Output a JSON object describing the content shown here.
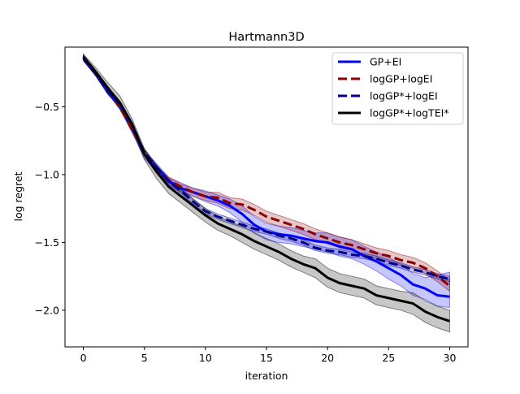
{
  "chart_data": {
    "type": "line",
    "title": "Hartmann3D",
    "xlabel": "iteration",
    "ylabel": "log regret",
    "xlim": [
      -1.5,
      31.5
    ],
    "ylim": [
      -2.27,
      -0.06
    ],
    "xticks": [
      0,
      5,
      10,
      15,
      20,
      25,
      30
    ],
    "xtick_labels": [
      "0",
      "5",
      "10",
      "15",
      "20",
      "25",
      "30"
    ],
    "yticks": [
      -0.5,
      -1.0,
      -1.5,
      -2.0
    ],
    "ytick_labels": [
      "−0.5",
      "−1.0",
      "−1.5",
      "−2.0"
    ],
    "grid": false,
    "legend_position": "upper right",
    "x": [
      0,
      1,
      2,
      3,
      4,
      5,
      6,
      7,
      8,
      9,
      10,
      11,
      12,
      13,
      14,
      15,
      16,
      17,
      18,
      19,
      20,
      21,
      22,
      23,
      24,
      25,
      26,
      27,
      28,
      29,
      30
    ],
    "series": [
      {
        "name": "GP+EI",
        "color": "#0000ff",
        "linestyle": "solid",
        "values": [
          -0.14,
          -0.25,
          -0.38,
          -0.49,
          -0.66,
          -0.85,
          -0.95,
          -1.05,
          -1.1,
          -1.13,
          -1.16,
          -1.19,
          -1.23,
          -1.29,
          -1.37,
          -1.42,
          -1.44,
          -1.45,
          -1.47,
          -1.49,
          -1.5,
          -1.53,
          -1.55,
          -1.6,
          -1.64,
          -1.69,
          -1.74,
          -1.81,
          -1.84,
          -1.89,
          -1.9
        ],
        "lower": [
          -0.16,
          -0.27,
          -0.4,
          -0.51,
          -0.69,
          -0.88,
          -0.98,
          -1.08,
          -1.13,
          -1.16,
          -1.2,
          -1.23,
          -1.28,
          -1.35,
          -1.43,
          -1.48,
          -1.5,
          -1.51,
          -1.53,
          -1.55,
          -1.57,
          -1.6,
          -1.62,
          -1.66,
          -1.71,
          -1.77,
          -1.82,
          -1.89,
          -1.92,
          -1.97,
          -1.98
        ],
        "upper": [
          -0.12,
          -0.23,
          -0.36,
          -0.47,
          -0.63,
          -0.82,
          -0.92,
          -1.02,
          -1.07,
          -1.1,
          -1.12,
          -1.15,
          -1.18,
          -1.23,
          -1.31,
          -1.36,
          -1.38,
          -1.39,
          -1.41,
          -1.43,
          -1.43,
          -1.46,
          -1.48,
          -1.53,
          -1.57,
          -1.61,
          -1.66,
          -1.73,
          -1.76,
          -1.74,
          -1.72
        ]
      },
      {
        "name": "logGP+logEI",
        "color": "#8b0000",
        "linestyle": "dashed",
        "values": [
          -0.14,
          -0.25,
          -0.37,
          -0.5,
          -0.67,
          -0.83,
          -0.96,
          -1.04,
          -1.09,
          -1.13,
          -1.16,
          -1.17,
          -1.21,
          -1.22,
          -1.26,
          -1.31,
          -1.34,
          -1.37,
          -1.4,
          -1.44,
          -1.47,
          -1.5,
          -1.52,
          -1.55,
          -1.58,
          -1.6,
          -1.63,
          -1.65,
          -1.69,
          -1.75,
          -1.82
        ],
        "lower": [
          -0.16,
          -0.27,
          -0.39,
          -0.52,
          -0.69,
          -0.85,
          -0.98,
          -1.06,
          -1.12,
          -1.16,
          -1.19,
          -1.21,
          -1.25,
          -1.26,
          -1.3,
          -1.35,
          -1.38,
          -1.41,
          -1.44,
          -1.48,
          -1.51,
          -1.54,
          -1.56,
          -1.59,
          -1.62,
          -1.64,
          -1.67,
          -1.69,
          -1.73,
          -1.79,
          -1.86
        ],
        "upper": [
          -0.12,
          -0.23,
          -0.35,
          -0.48,
          -0.65,
          -0.81,
          -0.94,
          -1.02,
          -1.06,
          -1.1,
          -1.13,
          -1.13,
          -1.17,
          -1.18,
          -1.22,
          -1.27,
          -1.3,
          -1.33,
          -1.36,
          -1.4,
          -1.43,
          -1.46,
          -1.48,
          -1.51,
          -1.54,
          -1.56,
          -1.59,
          -1.61,
          -1.65,
          -1.71,
          -1.78
        ]
      },
      {
        "name": "logGP*+logEI",
        "color": "#00008b",
        "linestyle": "dashed",
        "values": [
          -0.14,
          -0.25,
          -0.39,
          -0.48,
          -0.63,
          -0.84,
          -0.95,
          -1.05,
          -1.12,
          -1.2,
          -1.27,
          -1.31,
          -1.34,
          -1.37,
          -1.4,
          -1.42,
          -1.45,
          -1.47,
          -1.5,
          -1.54,
          -1.56,
          -1.57,
          -1.59,
          -1.6,
          -1.62,
          -1.65,
          -1.67,
          -1.7,
          -1.72,
          -1.75,
          -1.77
        ],
        "lower": [
          -0.16,
          -0.27,
          -0.41,
          -0.5,
          -0.65,
          -0.86,
          -0.97,
          -1.07,
          -1.14,
          -1.22,
          -1.29,
          -1.33,
          -1.36,
          -1.39,
          -1.42,
          -1.44,
          -1.47,
          -1.49,
          -1.52,
          -1.56,
          -1.58,
          -1.59,
          -1.61,
          -1.62,
          -1.64,
          -1.67,
          -1.69,
          -1.72,
          -1.74,
          -1.77,
          -1.79
        ],
        "upper": [
          -0.12,
          -0.23,
          -0.37,
          -0.46,
          -0.61,
          -0.82,
          -0.93,
          -1.03,
          -1.1,
          -1.18,
          -1.25,
          -1.29,
          -1.32,
          -1.35,
          -1.38,
          -1.4,
          -1.43,
          -1.45,
          -1.48,
          -1.52,
          -1.54,
          -1.55,
          -1.57,
          -1.58,
          -1.6,
          -1.63,
          -1.65,
          -1.68,
          -1.7,
          -1.73,
          -1.75
        ]
      },
      {
        "name": "logGP*+logTEI*",
        "color": "#000000",
        "linestyle": "solid",
        "values": [
          -0.13,
          -0.24,
          -0.36,
          -0.47,
          -0.63,
          -0.85,
          -0.98,
          -1.09,
          -1.16,
          -1.23,
          -1.3,
          -1.36,
          -1.4,
          -1.44,
          -1.49,
          -1.53,
          -1.57,
          -1.62,
          -1.66,
          -1.69,
          -1.76,
          -1.8,
          -1.82,
          -1.84,
          -1.89,
          -1.91,
          -1.93,
          -1.95,
          -2.01,
          -2.05,
          -2.08
        ],
        "lower": [
          -0.15,
          -0.27,
          -0.4,
          -0.52,
          -0.67,
          -0.89,
          -1.03,
          -1.14,
          -1.21,
          -1.28,
          -1.35,
          -1.41,
          -1.45,
          -1.5,
          -1.55,
          -1.59,
          -1.63,
          -1.68,
          -1.72,
          -1.76,
          -1.83,
          -1.87,
          -1.89,
          -1.91,
          -1.96,
          -1.98,
          -2.0,
          -2.03,
          -2.09,
          -2.13,
          -2.16
        ],
        "upper": [
          -0.11,
          -0.21,
          -0.32,
          -0.42,
          -0.59,
          -0.81,
          -0.93,
          -1.04,
          -1.11,
          -1.18,
          -1.25,
          -1.31,
          -1.35,
          -1.38,
          -1.43,
          -1.47,
          -1.51,
          -1.56,
          -1.6,
          -1.62,
          -1.69,
          -1.73,
          -1.75,
          -1.77,
          -1.82,
          -1.84,
          -1.86,
          -1.87,
          -1.93,
          -1.97,
          -2.0
        ]
      }
    ]
  }
}
